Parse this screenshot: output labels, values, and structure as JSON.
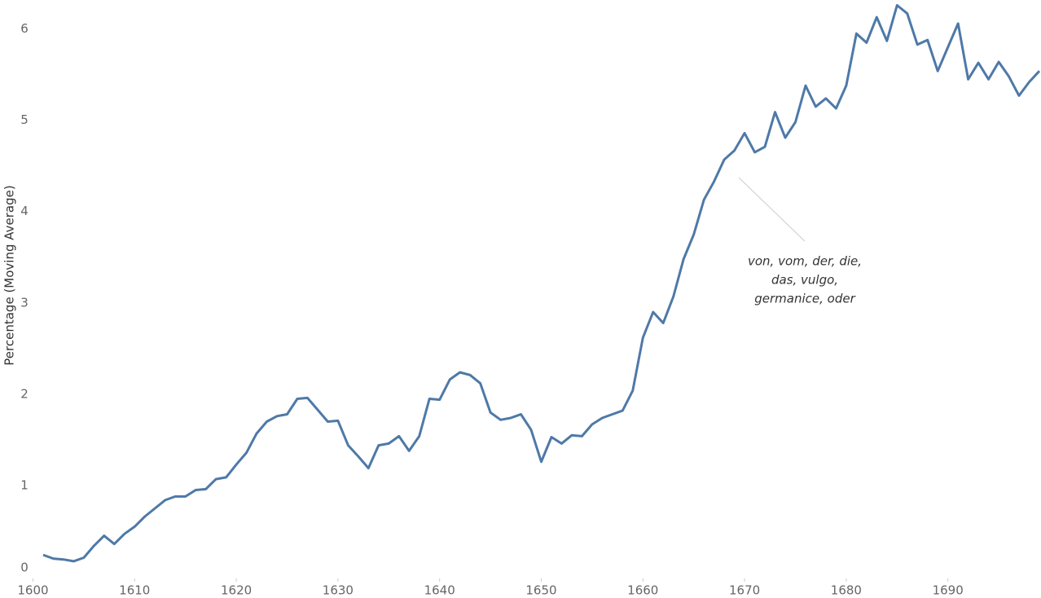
{
  "chart_data": {
    "type": "line",
    "y_label": "Percentage (Moving Average)",
    "annotation": [
      "von, vom, der, die,",
      "das, vulgo,",
      "germanice, oder"
    ],
    "x": [
      1601,
      1602,
      1603,
      1604,
      1605,
      1606,
      1607,
      1608,
      1609,
      1610,
      1611,
      1612,
      1613,
      1614,
      1615,
      1616,
      1617,
      1618,
      1619,
      1620,
      1621,
      1622,
      1623,
      1624,
      1625,
      1626,
      1627,
      1628,
      1629,
      1630,
      1631,
      1632,
      1633,
      1634,
      1635,
      1636,
      1637,
      1638,
      1639,
      1640,
      1641,
      1642,
      1643,
      1644,
      1645,
      1646,
      1647,
      1648,
      1649,
      1650,
      1651,
      1652,
      1653,
      1654,
      1655,
      1656,
      1657,
      1658,
      1659,
      1660,
      1661,
      1662,
      1663,
      1664,
      1665,
      1666,
      1667,
      1668,
      1669,
      1670,
      1671,
      1672,
      1673,
      1674,
      1675,
      1676,
      1677,
      1678,
      1679,
      1680,
      1681,
      1682,
      1683,
      1684,
      1685,
      1686,
      1687,
      1688,
      1689,
      1690,
      1691,
      1692,
      1693,
      1694,
      1695,
      1696,
      1697,
      1698,
      1699
    ],
    "series": [
      {
        "color": "#4e79a7",
        "values": [
          0.24,
          0.2,
          0.19,
          0.17,
          0.21,
          0.34,
          0.45,
          0.36,
          0.47,
          0.55,
          0.66,
          0.75,
          0.84,
          0.88,
          0.88,
          0.95,
          0.96,
          1.07,
          1.09,
          1.23,
          1.36,
          1.57,
          1.7,
          1.76,
          1.78,
          1.95,
          1.96,
          1.83,
          1.7,
          1.71,
          1.44,
          1.32,
          1.19,
          1.44,
          1.46,
          1.54,
          1.38,
          1.54,
          1.95,
          1.94,
          2.16,
          2.24,
          2.21,
          2.12,
          1.8,
          1.72,
          1.74,
          1.78,
          1.61,
          1.26,
          1.53,
          1.46,
          1.55,
          1.54,
          1.67,
          1.74,
          1.78,
          1.82,
          2.04,
          2.62,
          2.9,
          2.78,
          3.07,
          3.48,
          3.75,
          4.13,
          4.33,
          4.57,
          4.67,
          4.86,
          4.65,
          4.71,
          5.09,
          4.81,
          4.98,
          5.38,
          5.15,
          5.24,
          5.13,
          5.38,
          5.95,
          5.85,
          6.13,
          5.87,
          6.26,
          6.17,
          5.83,
          5.88,
          5.54,
          5.8,
          6.06,
          5.45,
          5.63,
          5.45,
          5.64,
          5.48,
          5.27,
          5.42,
          5.54
        ]
      }
    ],
    "xlim": [
      1599,
      1699
    ],
    "xticks": [
      1600,
      1610,
      1620,
      1630,
      1640,
      1650,
      1660,
      1670,
      1680,
      1690
    ],
    "ylim": [
      0,
      6.3
    ],
    "yticks": [
      0,
      1,
      2,
      3,
      4,
      5,
      6
    ],
    "grid": false
  }
}
